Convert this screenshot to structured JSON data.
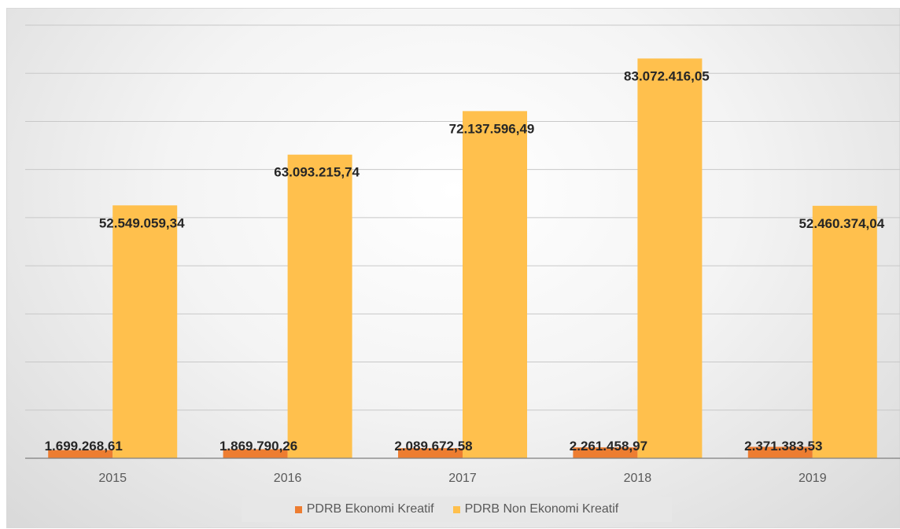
{
  "chart_data": {
    "type": "bar",
    "title": "",
    "xlabel": "",
    "ylabel": "",
    "categories": [
      "2015",
      "2016",
      "2017",
      "2018",
      "2019"
    ],
    "ylim": [
      0,
      90000000
    ],
    "grid": true,
    "legend_position": "bottom",
    "series": [
      {
        "name": "PDRB Ekonomi Kreatif",
        "color": "#ED7D31",
        "values": [
          1699268.61,
          1869790.26,
          2089672.58,
          2261458.97,
          2371383.53
        ],
        "labels": [
          "1.699.268,61",
          "1.869.790,26",
          "2.089.672,58",
          "2.261.458,97",
          "2.371.383,53"
        ]
      },
      {
        "name": "PDRB Non Ekonomi Kreatif",
        "color": "#FFC04D",
        "values": [
          52549059.34,
          63093215.74,
          72137596.49,
          83072416.05,
          52460374.04
        ],
        "labels": [
          "52.549.059,34",
          "63.093.215,74",
          "72.137.596,49",
          "83.072.416,05",
          "52.460.374,04"
        ]
      }
    ]
  }
}
